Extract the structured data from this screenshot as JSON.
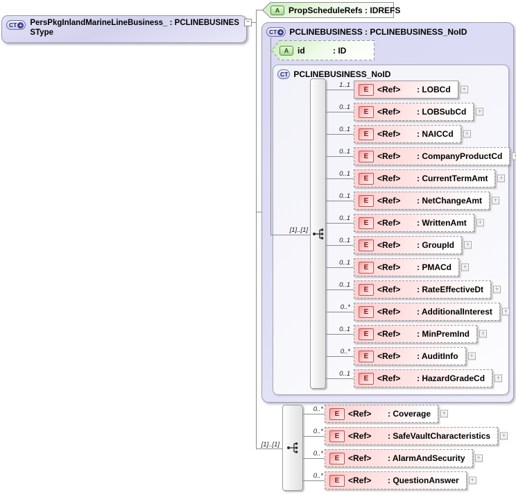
{
  "icons": {
    "complex": "CT",
    "attribute": "A",
    "element": "E",
    "plus_badge": "+",
    "expand": "+",
    "collapse": "−"
  },
  "labels": {
    "ref": "<Ref>"
  },
  "colors": {
    "complex_fill": "#dcdcf4",
    "attribute_fill": "#cdeec0",
    "element_fill": "#ffcfcf",
    "connector": "#8c8c8c"
  },
  "root_type": {
    "label": "PersPkgInlandMarineLineBusiness_ : PCLINEBUSINESSType"
  },
  "prop_attr": {
    "label": "PropScheduleRefs : IDREFS"
  },
  "complex": {
    "title": "PCLINEBUSINESS : PCLINEBUSINESS_NoID",
    "id_attr": {
      "name": "id",
      "type": ": ID"
    },
    "inner": {
      "title": "PCLINEBUSINESS_NoID",
      "occurrence": "[1]..[1]",
      "elements": [
        {
          "cardinality": "1..1",
          "name": ": LOBCd"
        },
        {
          "cardinality": "0..1",
          "name": ": LOBSubCd"
        },
        {
          "cardinality": "0..1",
          "name": ": NAICCd"
        },
        {
          "cardinality": "0..1",
          "name": ": CompanyProductCd"
        },
        {
          "cardinality": "0..1",
          "name": ": CurrentTermAmt"
        },
        {
          "cardinality": "0..1",
          "name": ": NetChangeAmt"
        },
        {
          "cardinality": "0..1",
          "name": ": WrittenAmt"
        },
        {
          "cardinality": "0..1",
          "name": ": GroupId"
        },
        {
          "cardinality": "0..1",
          "name": ": PMACd"
        },
        {
          "cardinality": "0..1",
          "name": ": RateEffectiveDt"
        },
        {
          "cardinality": "0..*",
          "name": ": AdditionalInterest"
        },
        {
          "cardinality": "0..1",
          "name": ": MinPremInd"
        },
        {
          "cardinality": "0..*",
          "name": ": AuditInfo"
        },
        {
          "cardinality": "0..1",
          "name": ": HazardGradeCd"
        }
      ]
    }
  },
  "bottom": {
    "occurrence": "[1]..[1]",
    "elements": [
      {
        "cardinality": "0..*",
        "name": ": Coverage"
      },
      {
        "cardinality": "0..*",
        "name": ": SafeVaultCharacteristics"
      },
      {
        "cardinality": "0..*",
        "name": ": AlarmAndSecurity"
      },
      {
        "cardinality": "0..*",
        "name": ": QuestionAnswer"
      }
    ]
  }
}
